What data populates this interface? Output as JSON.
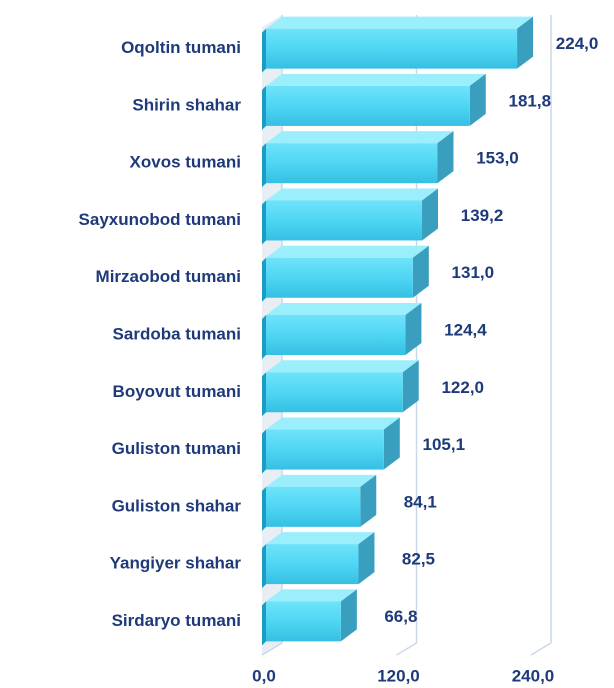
{
  "chart_data": {
    "type": "bar",
    "orientation": "horizontal",
    "categories": [
      "Oqoltin tumani",
      "Shirin shahar",
      "Xovos tumani",
      "Sayxunobod tumani",
      "Mirzaobod tumani",
      "Sardoba tumani",
      "Boyovut tumani",
      "Guliston tumani",
      "Guliston shahar",
      "Yangiyer shahar",
      "Sirdaryo tumani"
    ],
    "values": [
      224.0,
      181.8,
      153.0,
      139.2,
      131.0,
      124.4,
      122.0,
      105.1,
      84.1,
      82.5,
      66.8
    ],
    "value_labels": [
      "224,0",
      "181,8",
      "153,0",
      "139,2",
      "131,0",
      "124,4",
      "122,0",
      "105,1",
      "84,1",
      "82,5",
      "66,8"
    ],
    "color": "#4fd6f4",
    "xlim": [
      0,
      240
    ],
    "xticks": [
      {
        "value": 0,
        "label": "0,0"
      },
      {
        "value": 120,
        "label": "120,0"
      },
      {
        "value": 240,
        "label": "240,0"
      }
    ],
    "grid": true
  }
}
